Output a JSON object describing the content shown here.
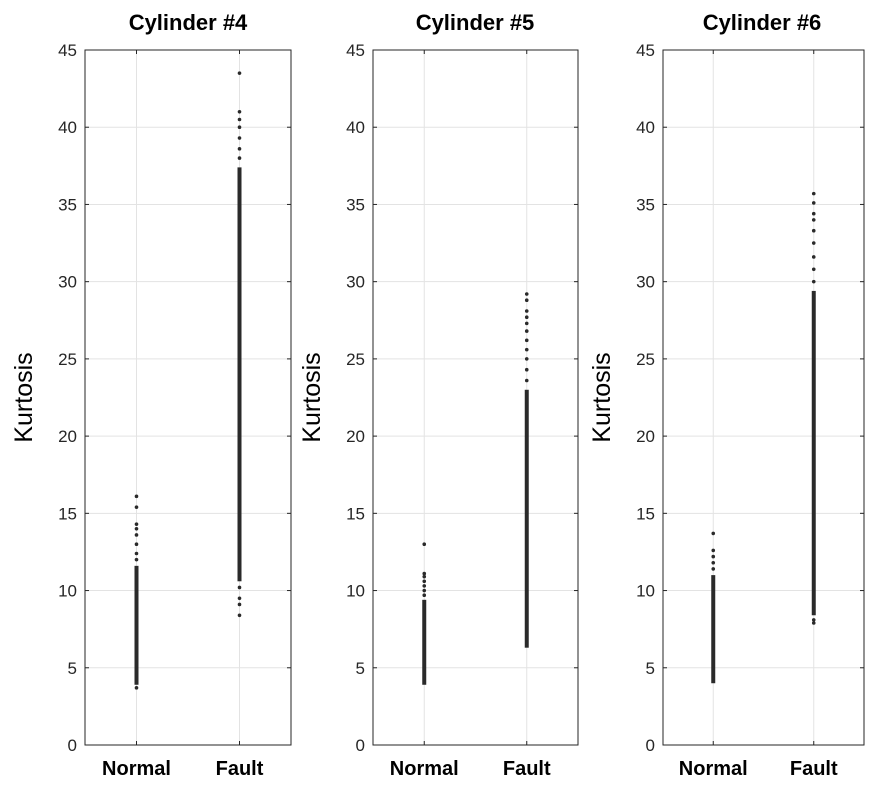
{
  "chart_data": [
    {
      "type": "scatter",
      "title": "Cylinder #4",
      "ylabel": "Kurtosis",
      "categories": [
        "Normal",
        "Fault"
      ],
      "ylim": [
        0,
        45
      ],
      "yticks": [
        0,
        5,
        10,
        15,
        20,
        25,
        30,
        35,
        40,
        45
      ],
      "grid": true,
      "series": [
        {
          "category": "Normal",
          "dense_range": [
            3.9,
            11.6
          ],
          "points": [
            3.7,
            12.0,
            12.4,
            13.0,
            13.6,
            14.0,
            14.3,
            15.4,
            16.1
          ]
        },
        {
          "category": "Fault",
          "dense_range": [
            10.6,
            37.4
          ],
          "points": [
            8.4,
            9.1,
            9.5,
            10.2,
            38.0,
            38.6,
            39.3,
            40.0,
            40.5,
            41.0,
            43.5
          ]
        }
      ]
    },
    {
      "type": "scatter",
      "title": "Cylinder #5",
      "ylabel": "Kurtosis",
      "categories": [
        "Normal",
        "Fault"
      ],
      "ylim": [
        0,
        45
      ],
      "yticks": [
        0,
        5,
        10,
        15,
        20,
        25,
        30,
        35,
        40,
        45
      ],
      "grid": true,
      "series": [
        {
          "category": "Normal",
          "dense_range": [
            3.9,
            9.4
          ],
          "points": [
            9.7,
            10.0,
            10.3,
            10.6,
            10.9,
            11.1,
            13.0
          ]
        },
        {
          "category": "Fault",
          "dense_range": [
            6.3,
            23.0
          ],
          "points": [
            23.6,
            24.3,
            25.0,
            25.6,
            26.2,
            26.8,
            27.3,
            27.7,
            28.1,
            28.8,
            29.2
          ]
        }
      ]
    },
    {
      "type": "scatter",
      "title": "Cylinder #6",
      "ylabel": "Kurtosis",
      "categories": [
        "Normal",
        "Fault"
      ],
      "ylim": [
        0,
        45
      ],
      "yticks": [
        0,
        5,
        10,
        15,
        20,
        25,
        30,
        35,
        40,
        45
      ],
      "grid": true,
      "series": [
        {
          "category": "Normal",
          "dense_range": [
            4.0,
            11.0
          ],
          "points": [
            11.4,
            11.8,
            12.2,
            12.6,
            13.7
          ]
        },
        {
          "category": "Fault",
          "dense_range": [
            8.4,
            29.4
          ],
          "points": [
            7.9,
            8.1,
            30.0,
            30.8,
            31.6,
            32.5,
            33.3,
            34.0,
            34.4,
            35.1,
            35.7
          ]
        }
      ]
    }
  ]
}
